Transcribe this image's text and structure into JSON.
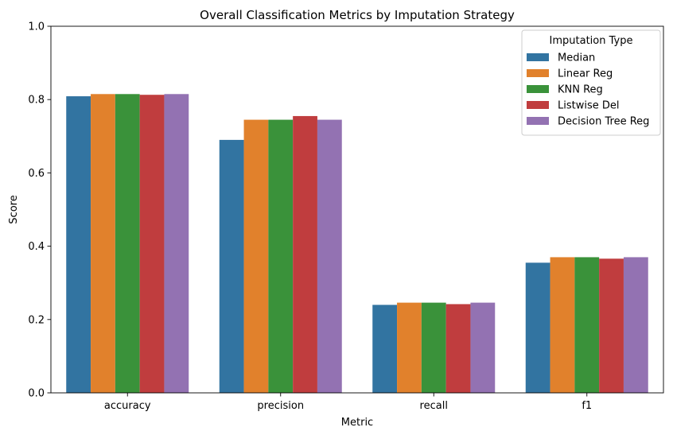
{
  "chart_data": {
    "type": "bar",
    "title": "Overall Classification Metrics by Imputation Strategy",
    "xlabel": "Metric",
    "ylabel": "Score",
    "ylim": [
      0,
      1
    ],
    "yticks": [
      "0.0",
      "0.2",
      "0.4",
      "0.6",
      "0.8",
      "1.0"
    ],
    "categories": [
      "accuracy",
      "precision",
      "recall",
      "f1"
    ],
    "legend": {
      "title": "Imputation Type",
      "placement": "top-right"
    },
    "grid": false,
    "series": [
      {
        "name": "Median",
        "color": "#3274a1",
        "values": [
          0.809,
          0.69,
          0.24,
          0.355
        ]
      },
      {
        "name": "Linear Reg",
        "color": "#e1812c",
        "values": [
          0.815,
          0.745,
          0.246,
          0.37
        ]
      },
      {
        "name": "KNN Reg",
        "color": "#3a923a",
        "values": [
          0.815,
          0.745,
          0.246,
          0.37
        ]
      },
      {
        "name": "Listwise Del",
        "color": "#c03d3e",
        "values": [
          0.813,
          0.755,
          0.242,
          0.366
        ]
      },
      {
        "name": "Decision Tree Reg",
        "color": "#9372b2",
        "values": [
          0.815,
          0.745,
          0.246,
          0.37
        ]
      }
    ]
  }
}
